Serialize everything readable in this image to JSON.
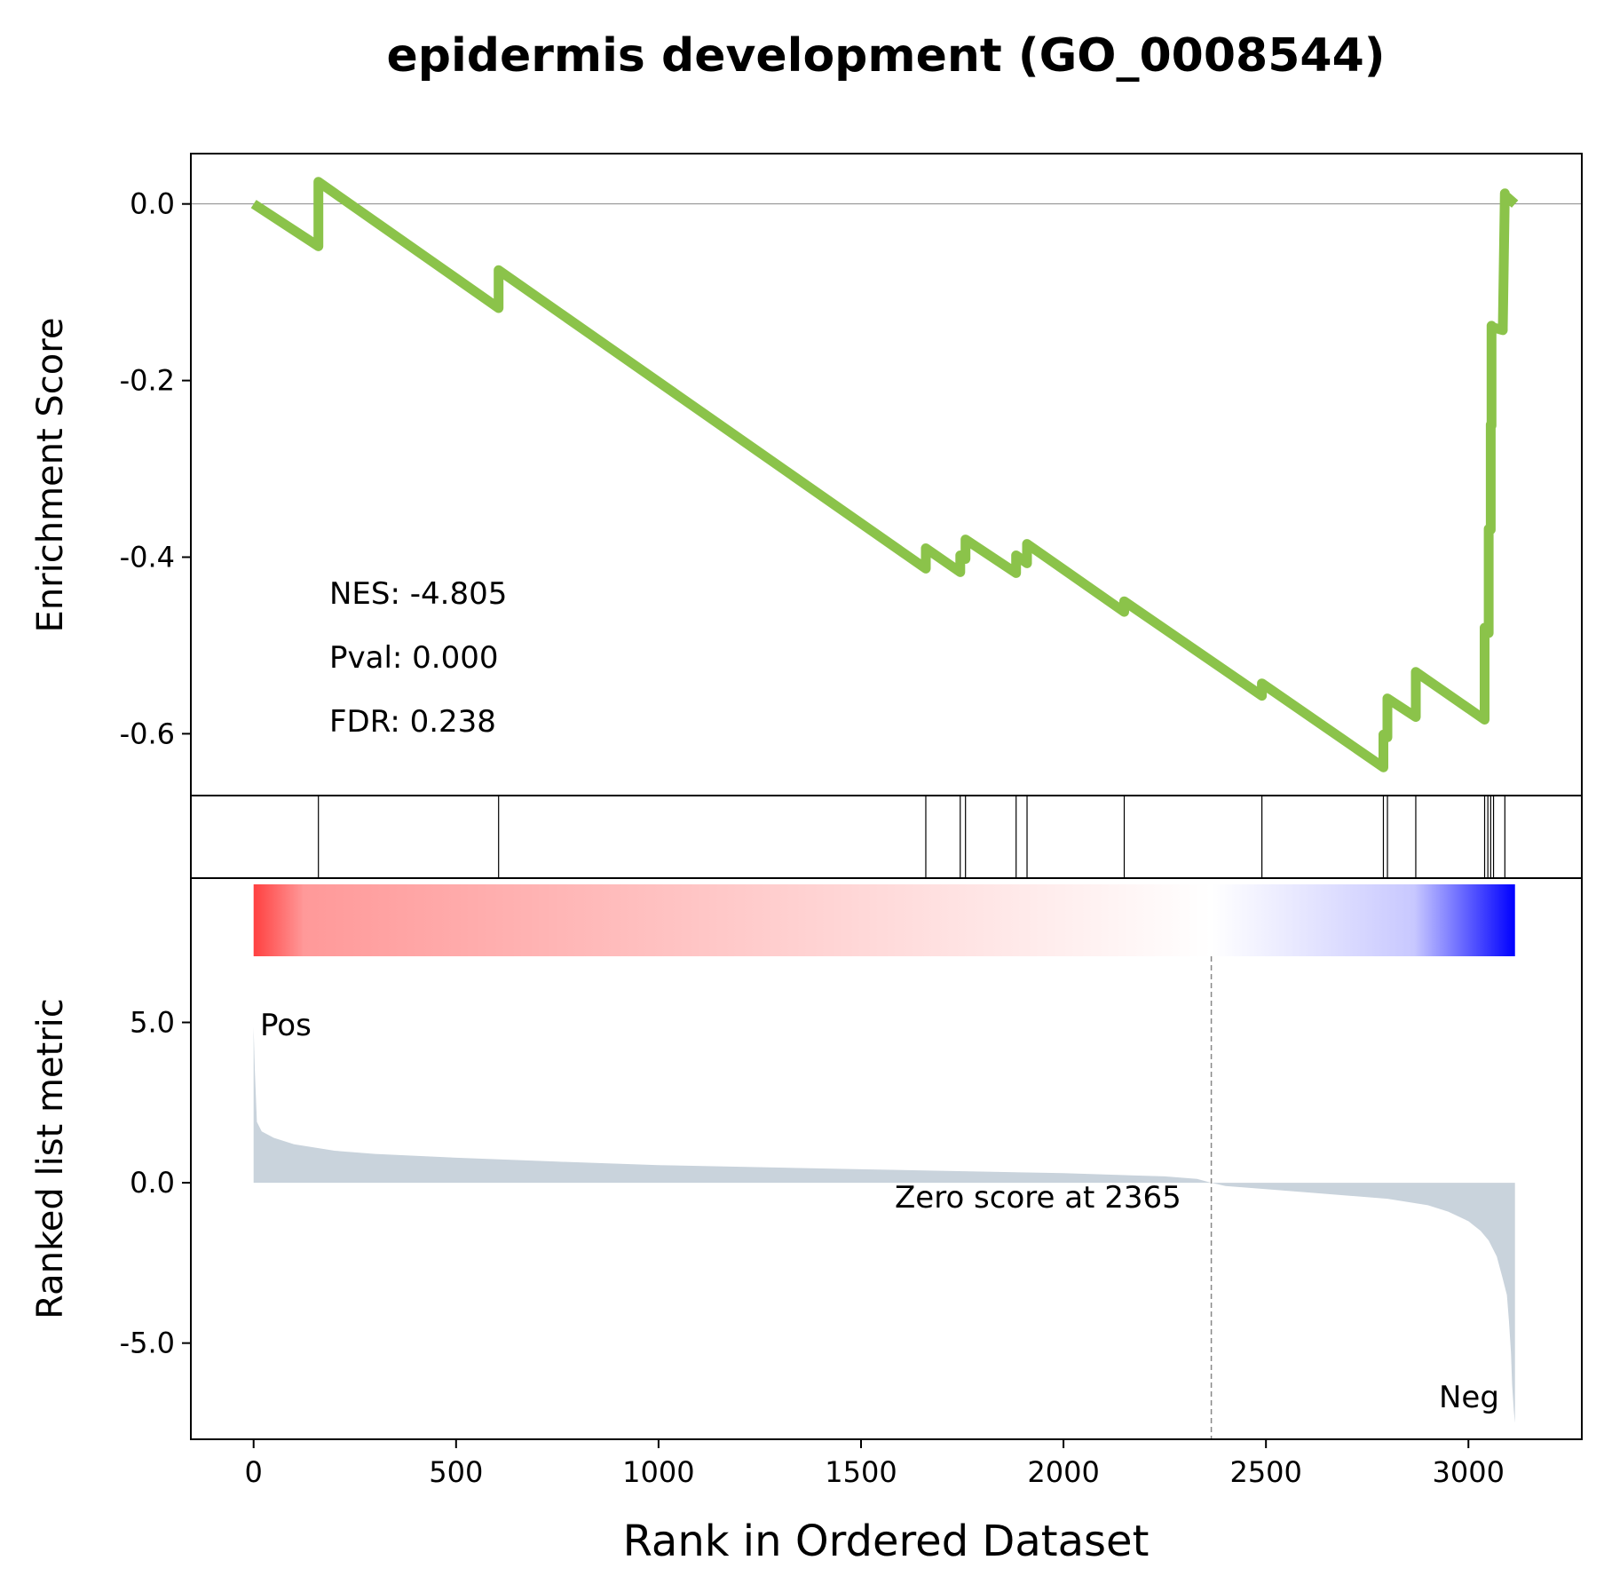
{
  "chart_data": {
    "type": "line",
    "title": "epidermis development (GO_0008544)",
    "xlabel": "Rank in Ordered Dataset",
    "x_ticks": [
      0,
      500,
      1000,
      1500,
      2000,
      2500,
      3000
    ],
    "xlim": [
      -155,
      3280
    ],
    "top_panel": {
      "ylabel": "Enrichment Score",
      "ylim": [
        -0.67,
        0.057
      ],
      "y_ticks": [
        0.0,
        -0.2,
        -0.4,
        -0.6
      ],
      "y_tick_labels": [
        "0.0",
        "-0.2",
        "-0.4",
        "-0.6"
      ],
      "line_color": "#8BC34A",
      "zero_line": true,
      "series": [
        {
          "x": [
            0,
            160,
            160,
            605,
            605,
            1660,
            1660,
            1745,
            1745,
            1758,
            1758,
            1883,
            1883,
            1910,
            1910,
            2150,
            2150,
            2490,
            2490,
            2790,
            2790,
            2800,
            2800,
            2870,
            2870,
            3040,
            3040,
            3045,
            3045,
            3050,
            3050,
            3055,
            3055,
            3057,
            3057,
            3062,
            3062,
            3085,
            3085,
            3090,
            3090,
            3115
          ],
          "y": [
            0.0,
            -0.048,
            0.025,
            -0.118,
            -0.075,
            -0.413,
            -0.39,
            -0.417,
            -0.398,
            -0.402,
            -0.38,
            -0.418,
            -0.398,
            -0.407,
            -0.385,
            -0.462,
            -0.45,
            -0.557,
            -0.543,
            -0.638,
            -0.601,
            -0.604,
            -0.56,
            -0.581,
            -0.53,
            -0.584,
            -0.48,
            -0.481,
            -0.485,
            -0.486,
            -0.368,
            -0.369,
            -0.25,
            -0.251,
            -0.138,
            -0.142,
            -0.14,
            -0.143,
            -0.14,
            0.012,
            0.01,
            0.0
          ]
        }
      ],
      "annotations": [
        "NES: -4.805",
        "Pval: 0.000",
        "FDR: 0.238"
      ]
    },
    "hit_panel": {
      "hit_positions": [
        160,
        605,
        1660,
        1745,
        1758,
        1883,
        1910,
        2150,
        2490,
        2790,
        2800,
        2870,
        3040,
        3048,
        3055,
        3062,
        3090
      ]
    },
    "bottom_panel": {
      "ylabel": "Ranked list metric",
      "ylim": [
        -8.0,
        9.5
      ],
      "y_ticks": [
        5.0,
        0.0,
        -5.0
      ],
      "y_tick_labels": [
        "5.0",
        "0.0",
        "-5.0"
      ],
      "fill_color": "#C9D3DC",
      "colorbar": {
        "from": "#FF4040",
        "mid": "#FFFFFF",
        "to": "#0000FF",
        "mid_at": 2365
      },
      "metric_curve": {
        "x": [
          0,
          3,
          8,
          20,
          50,
          100,
          200,
          300,
          500,
          750,
          1000,
          1500,
          2000,
          2250,
          2330,
          2365,
          2400,
          2600,
          2800,
          2900,
          2950,
          3000,
          3030,
          3050,
          3070,
          3085,
          3095,
          3100,
          3105,
          3108,
          3112,
          3115
        ],
        "y": [
          4.85,
          3.5,
          1.9,
          1.6,
          1.4,
          1.2,
          1.0,
          0.9,
          0.78,
          0.66,
          0.55,
          0.42,
          0.3,
          0.2,
          0.12,
          0.0,
          -0.1,
          -0.3,
          -0.5,
          -0.7,
          -0.9,
          -1.2,
          -1.5,
          -1.8,
          -2.3,
          -3.0,
          -3.5,
          -4.3,
          -5.3,
          -6.3,
          -7.1,
          -7.5
        ]
      },
      "zero_cross_rank": 2365,
      "zero_label": "Zero score at 2365",
      "pos_label": "Pos",
      "neg_label": "Neg",
      "pos_color": "#FF0000",
      "neg_color": "#0000FF"
    }
  }
}
